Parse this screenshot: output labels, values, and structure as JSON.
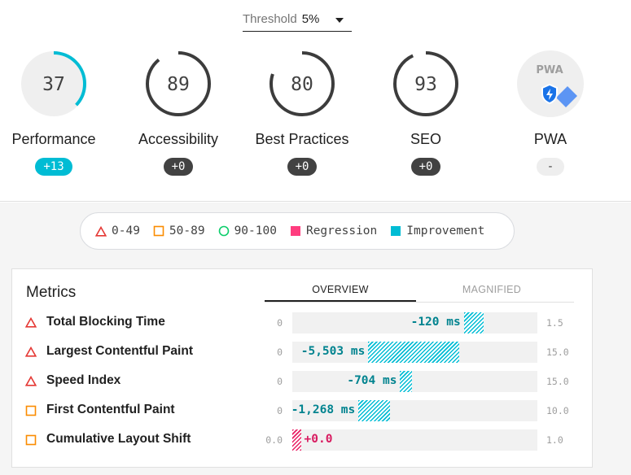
{
  "threshold": {
    "label": "Threshold",
    "value": "5%"
  },
  "gauges": [
    {
      "name": "Performance",
      "score": "37",
      "fraction": 0.37,
      "ring_color": "#00bcd4",
      "delta": "+13",
      "badge_type": "improve"
    },
    {
      "name": "Accessibility",
      "score": "89",
      "fraction": 0.89,
      "ring_color": "#3c3c3c",
      "delta": "+0",
      "badge_type": "neutral"
    },
    {
      "name": "Best Practices",
      "score": "80",
      "fraction": 0.8,
      "ring_color": "#3c3c3c",
      "delta": "+0",
      "badge_type": "neutral"
    },
    {
      "name": "SEO",
      "score": "93",
      "fraction": 0.93,
      "ring_color": "#3c3c3c",
      "delta": "+0",
      "badge_type": "neutral"
    },
    {
      "name": "PWA",
      "score": "PWA",
      "fraction": 0,
      "ring_color": "#3c3c3c",
      "delta": "-",
      "badge_type": "none"
    }
  ],
  "legend": [
    {
      "label": "0-49",
      "icon": "triangle-icon",
      "color": "#e53935"
    },
    {
      "label": "50-89",
      "icon": "square-icon",
      "color": "#fb8c00"
    },
    {
      "label": "90-100",
      "icon": "circle-icon",
      "color": "#0cce6b"
    },
    {
      "label": "Regression",
      "icon": "filled-square-icon",
      "color": "#ff3d7f"
    },
    {
      "label": "Improvement",
      "icon": "filled-square-icon",
      "color": "#00bcd4"
    }
  ],
  "metrics": {
    "title": "Metrics",
    "tabs": [
      {
        "label": "OVERVIEW",
        "active": true
      },
      {
        "label": "MAGNIFIED",
        "active": false
      }
    ],
    "rows": [
      {
        "name": "Total Blocking Time",
        "icon": "triangle-icon",
        "min": "0",
        "max": "1.5",
        "delta_text": "-120 ms",
        "fill_start": 0.7,
        "fill_end": 0.78,
        "kind": "imp"
      },
      {
        "name": "Largest Contentful Paint",
        "icon": "triangle-icon",
        "min": "0",
        "max": "15.0",
        "delta_text": "-5,503 ms",
        "fill_start": 0.31,
        "fill_end": 0.68,
        "kind": "imp"
      },
      {
        "name": "Speed Index",
        "icon": "triangle-icon",
        "min": "0",
        "max": "15.0",
        "delta_text": "-704 ms",
        "fill_start": 0.44,
        "fill_end": 0.49,
        "kind": "imp"
      },
      {
        "name": "First Contentful Paint",
        "icon": "square-icon",
        "min": "0",
        "max": "10.0",
        "delta_text": "-1,268 ms",
        "fill_start": 0.27,
        "fill_end": 0.4,
        "kind": "imp"
      },
      {
        "name": "Cumulative Layout Shift",
        "icon": "square-icon",
        "min": "0.0",
        "max": "1.0",
        "delta_text": "+0.0",
        "fill_start": 0.0,
        "fill_end": 0.035,
        "kind": "reg"
      }
    ]
  },
  "colors": {
    "fail": "#e53935",
    "average": "#fb8c00",
    "pass": "#0cce6b",
    "regression": "#ff3d7f",
    "improvement": "#00bcd4"
  }
}
